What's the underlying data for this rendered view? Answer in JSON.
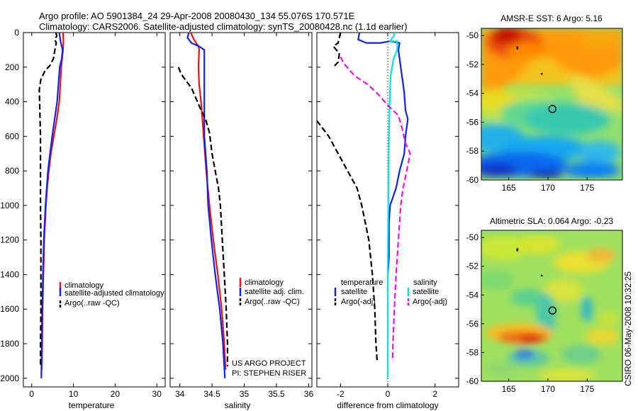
{
  "title_line1": "Argo profile: AO 5901384_24 29-Apr-2008 20080430_134 55.076S 170.571E",
  "title_line2": "Climatology: CARS2006. Satellite-adjusted climatology: synTS_20080428.nc (1.1d earlier)",
  "credit_line1": "US ARGO PROJECT",
  "credit_line2": "PI: STEPHEN RISER",
  "timestamp": "CSIRO 06-May-2008 10:32:25",
  "colors": {
    "climatology": "#ee1111",
    "satellite": "#1122ee",
    "argo": "#000000",
    "sal_sat": "#00e6e6",
    "sal_argo": "#ee11ee"
  },
  "chart_data": [
    {
      "type": "line",
      "id": "temperature",
      "xlabel": "temperature",
      "ylabel": "",
      "xlim": [
        -2,
        32
      ],
      "ylim": [
        2050,
        0
      ],
      "xticks": [
        "0",
        "10",
        "20",
        "30"
      ],
      "xtick_values": [
        0,
        10,
        20,
        30
      ],
      "yticks": [
        "0",
        "200",
        "400",
        "600",
        "800",
        "1000",
        "1200",
        "1400",
        "1600",
        "1800",
        "2000"
      ],
      "ytick_values": [
        0,
        200,
        400,
        600,
        800,
        1000,
        1200,
        1400,
        1600,
        1800,
        2000
      ],
      "legend": [
        "climatology",
        "satellite-adjusted climatology",
        "Argo(..raw -QC)"
      ],
      "legend_position": "bottom-right",
      "series": [
        {
          "name": "climatology",
          "color_key": "climatology",
          "dash": "",
          "points": [
            [
              7.5,
              0
            ],
            [
              7.6,
              50
            ],
            [
              7.5,
              100
            ],
            [
              7.3,
              150
            ],
            [
              7.1,
              200
            ],
            [
              6.6,
              400
            ],
            [
              6.0,
              500
            ],
            [
              5.3,
              600
            ],
            [
              4.6,
              700
            ],
            [
              4.1,
              800
            ],
            [
              3.7,
              900
            ],
            [
              3.4,
              1000
            ],
            [
              3.2,
              1100
            ],
            [
              3.0,
              1200
            ],
            [
              2.8,
              1400
            ],
            [
              2.6,
              1600
            ],
            [
              2.5,
              1800
            ],
            [
              2.4,
              1950
            ]
          ]
        },
        {
          "name": "satellite-adjusted climatology",
          "color_key": "satellite",
          "dash": "",
          "points": [
            [
              6.6,
              0
            ],
            [
              6.9,
              50
            ],
            [
              7.4,
              100
            ],
            [
              7.2,
              150
            ],
            [
              6.7,
              200
            ],
            [
              6.1,
              400
            ],
            [
              5.5,
              500
            ],
            [
              4.9,
              600
            ],
            [
              4.4,
              700
            ],
            [
              3.9,
              800
            ],
            [
              3.6,
              900
            ],
            [
              3.3,
              1000
            ],
            [
              3.1,
              1100
            ],
            [
              2.9,
              1200
            ],
            [
              2.7,
              1400
            ],
            [
              2.5,
              1600
            ],
            [
              2.4,
              1800
            ],
            [
              2.3,
              2000
            ]
          ]
        },
        {
          "name": "Argo(..raw -QC)",
          "color_key": "argo",
          "dash": "8,4",
          "points": [
            [
              5.8,
              0
            ],
            [
              6.0,
              20
            ],
            [
              5.5,
              40
            ],
            [
              5.9,
              60
            ],
            [
              5.7,
              80
            ],
            [
              5.2,
              150
            ],
            [
              4.4,
              190
            ],
            [
              3.2,
              220
            ],
            [
              2.2,
              270
            ],
            [
              1.8,
              330
            ],
            [
              1.9,
              400
            ],
            [
              2.0,
              500
            ],
            [
              2.1,
              600
            ],
            [
              2.1,
              800
            ],
            [
              2.1,
              1000
            ],
            [
              2.2,
              1200
            ],
            [
              2.2,
              1400
            ],
            [
              2.2,
              1600
            ],
            [
              2.1,
              1800
            ],
            [
              2.1,
              1930
            ]
          ]
        }
      ]
    },
    {
      "type": "line",
      "id": "salinity",
      "xlabel": "salinity",
      "ylabel": "",
      "xlim": [
        33.85,
        36.05
      ],
      "ylim": [
        2050,
        0
      ],
      "xticks": [
        "34",
        "34.5",
        "35",
        "35.5",
        "36"
      ],
      "xtick_values": [
        34,
        34.5,
        35,
        35.5,
        36
      ],
      "legend": [
        "climatology",
        "satellite adj. clim.",
        "Argo(..raw -QC)"
      ],
      "legend_position": "bottom-right",
      "series": [
        {
          "name": "climatology",
          "color_key": "climatology",
          "dash": "",
          "points": [
            [
              34.17,
              0
            ],
            [
              34.22,
              40
            ],
            [
              34.29,
              80
            ],
            [
              34.3,
              100
            ],
            [
              34.29,
              200
            ],
            [
              34.3,
              300
            ],
            [
              34.33,
              400
            ],
            [
              34.35,
              500
            ],
            [
              34.37,
              600
            ],
            [
              34.39,
              700
            ],
            [
              34.41,
              800
            ],
            [
              34.46,
              1000
            ],
            [
              34.52,
              1200
            ],
            [
              34.59,
              1400
            ],
            [
              34.65,
              1600
            ],
            [
              34.69,
              1800
            ],
            [
              34.71,
              1950
            ]
          ]
        },
        {
          "name": "satellite adj. clim.",
          "color_key": "satellite",
          "dash": "",
          "points": [
            [
              34.14,
              0
            ],
            [
              34.12,
              30
            ],
            [
              34.18,
              60
            ],
            [
              34.3,
              80
            ],
            [
              34.38,
              100
            ],
            [
              34.38,
              200
            ],
            [
              34.38,
              400
            ],
            [
              34.38,
              600
            ],
            [
              34.4,
              700
            ],
            [
              34.42,
              800
            ],
            [
              34.44,
              1000
            ],
            [
              34.49,
              1200
            ],
            [
              34.55,
              1400
            ],
            [
              34.62,
              1600
            ],
            [
              34.67,
              1800
            ],
            [
              34.7,
              2000
            ]
          ]
        },
        {
          "name": "Argo(..raw -QC)",
          "color_key": "argo",
          "dash": "8,4",
          "points": [
            [
              33.98,
              200
            ],
            [
              34.02,
              240
            ],
            [
              34.1,
              280
            ],
            [
              34.18,
              320
            ],
            [
              34.25,
              380
            ],
            [
              34.32,
              440
            ],
            [
              34.4,
              500
            ],
            [
              34.46,
              580
            ],
            [
              34.5,
              700
            ],
            [
              34.55,
              800
            ],
            [
              34.6,
              900
            ],
            [
              34.63,
              1000
            ],
            [
              34.66,
              1200
            ],
            [
              34.69,
              1400
            ],
            [
              34.72,
              1600
            ],
            [
              34.74,
              1800
            ],
            [
              34.74,
              1930
            ]
          ]
        }
      ]
    },
    {
      "type": "line",
      "id": "difference",
      "xlabel": "difference from climatology",
      "ylabel": "",
      "xlim": [
        -3,
        3
      ],
      "ylim": [
        2050,
        0
      ],
      "xticks": [
        "-2",
        "0",
        "2"
      ],
      "xtick_values": [
        -2,
        0,
        2
      ],
      "legend_left_title": "temperature",
      "legend_right_title": "salinity",
      "legend": [
        "satellite",
        "Argo(-adj)",
        "satellite",
        "Argo(-adj)"
      ],
      "legend_position": "bottom",
      "series": [
        {
          "name": "satellite",
          "color_key": "satellite",
          "dash": "",
          "points": [
            [
              -1.2,
              0
            ],
            [
              -1.25,
              40
            ],
            [
              -0.9,
              60
            ],
            [
              -0.3,
              60
            ],
            [
              0.1,
              50
            ],
            [
              0.5,
              60
            ],
            [
              0.45,
              100
            ],
            [
              0.55,
              200
            ],
            [
              0.65,
              300
            ],
            [
              0.7,
              350
            ],
            [
              0.75,
              450
            ],
            [
              0.85,
              500
            ],
            [
              0.75,
              600
            ],
            [
              0.7,
              700
            ],
            [
              0.5,
              800
            ],
            [
              0.35,
              900
            ],
            [
              0.1,
              1000
            ],
            [
              0.05,
              1100
            ],
            [
              0.05,
              1300
            ],
            [
              0.0,
              1400
            ],
            [
              0.0,
              1500
            ]
          ]
        },
        {
          "name": "Argo(-adj)",
          "color_key": "argo",
          "dash": "8,4",
          "points": [
            [
              -2.0,
              0
            ],
            [
              -2.1,
              60
            ],
            [
              -2.3,
              80
            ],
            [
              -2.05,
              120
            ],
            [
              -2.1,
              170
            ],
            [
              -2.3,
              200
            ]
          ]
        },
        {
          "name": "Argo(-adj)",
          "color_key": "argo",
          "dash": "8,4",
          "points": [
            [
              -3.0,
              510
            ],
            [
              -2.5,
              600
            ],
            [
              -2.1,
              700
            ],
            [
              -1.7,
              800
            ],
            [
              -1.3,
              900
            ],
            [
              -1.1,
              1000
            ],
            [
              -0.95,
              1100
            ],
            [
              -0.8,
              1200
            ],
            [
              -0.65,
              1400
            ],
            [
              -0.55,
              1600
            ],
            [
              -0.5,
              1800
            ],
            [
              -0.45,
              1900
            ]
          ]
        },
        {
          "name": "satellite",
          "color_key": "sal_sat",
          "dash": "",
          "points": [
            [
              0.3,
              0
            ],
            [
              0.25,
              20
            ],
            [
              0.1,
              50
            ],
            [
              0.4,
              50
            ],
            [
              0.4,
              100
            ],
            [
              0.25,
              150
            ],
            [
              0.12,
              250
            ],
            [
              0.08,
              400
            ],
            [
              0.05,
              600
            ],
            [
              0.03,
              800
            ],
            [
              0.02,
              1000
            ],
            [
              0.01,
              1200
            ],
            [
              0.0,
              1400
            ],
            [
              0.0,
              1600
            ],
            [
              0.0,
              1800
            ],
            [
              0.0,
              2000
            ]
          ]
        },
        {
          "name": "Argo(-adj)",
          "color_key": "sal_argo",
          "dash": "8,4",
          "points": [
            [
              -2.0,
              140
            ],
            [
              -1.85,
              180
            ],
            [
              -1.4,
              250
            ],
            [
              -0.85,
              300
            ],
            [
              -0.45,
              350
            ],
            [
              0.0,
              420
            ],
            [
              0.45,
              480
            ],
            [
              0.6,
              550
            ],
            [
              0.75,
              640
            ],
            [
              0.95,
              700
            ],
            [
              0.8,
              800
            ],
            [
              0.65,
              900
            ],
            [
              0.55,
              1000
            ],
            [
              0.45,
              1200
            ],
            [
              0.35,
              1400
            ],
            [
              0.28,
              1600
            ],
            [
              0.22,
              1800
            ],
            [
              0.2,
              1900
            ]
          ]
        }
      ]
    },
    {
      "type": "heatmap",
      "id": "sst",
      "title": "AMSR-E SST: 6 Argo: 5.16",
      "xlabel": "",
      "ylabel": "",
      "xlim": [
        161.5,
        179.5
      ],
      "ylim": [
        -60,
        -49.5
      ],
      "xticks": [
        "165",
        "170",
        "175"
      ],
      "xtick_values": [
        165,
        170,
        175
      ],
      "yticks": [
        "-50",
        "-52",
        "-54",
        "-56",
        "-58",
        "-60"
      ],
      "ytick_values": [
        -50,
        -52,
        -54,
        -56,
        -58,
        -60
      ],
      "float_position": [
        170.57,
        -55.08
      ],
      "track": [
        [
          166.1,
          -50.8
        ],
        [
          166.1,
          -50.85
        ],
        [
          166.1,
          -50.9
        ],
        [
          169.2,
          -52.65
        ]
      ],
      "bottom_mask_lat": -60
    },
    {
      "type": "heatmap",
      "id": "sla",
      "title": "Altimetric SLA: 0.064 Argo: -0.23",
      "xlabel": "",
      "ylabel": "",
      "xlim": [
        161.5,
        179.5
      ],
      "ylim": [
        -60,
        -49.5
      ],
      "xticks": [
        "165",
        "170",
        "175"
      ],
      "xtick_values": [
        165,
        170,
        175
      ],
      "yticks": [
        "-50",
        "-52",
        "-54",
        "-56",
        "-58",
        "-60"
      ],
      "ytick_values": [
        -50,
        -52,
        -54,
        -56,
        -58,
        -60
      ],
      "float_position": [
        170.57,
        -55.08
      ],
      "track": [
        [
          166.1,
          -50.8
        ],
        [
          166.1,
          -50.85
        ],
        [
          166.1,
          -50.9
        ],
        [
          169.2,
          -52.65
        ]
      ]
    }
  ]
}
